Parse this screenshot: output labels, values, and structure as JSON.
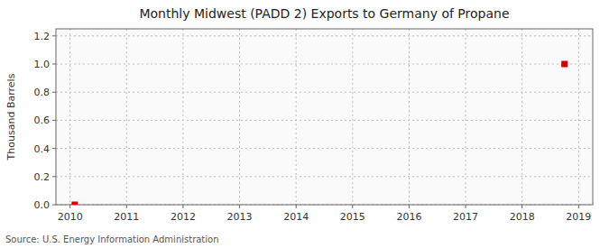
{
  "chart_data": {
    "type": "scatter",
    "title": "Monthly Midwest (PADD 2) Exports to Germany of Propane",
    "ylabel": "Thousand Barrels",
    "source": "Source: U.S. Energy Information Administration",
    "x": [
      2010.083,
      2018.75
    ],
    "values": [
      0.0,
      1.0
    ],
    "color": "#cc0000",
    "marker": "square",
    "xlim": [
      2009.75,
      2019.25
    ],
    "ylim": [
      0.0,
      1.25
    ],
    "xticks": [
      2010,
      2011,
      2012,
      2013,
      2014,
      2015,
      2016,
      2017,
      2018,
      2019
    ],
    "yticks": [
      {
        "value": 0.0,
        "label": "0.0"
      },
      0.2,
      0.4,
      0.6,
      0.8,
      {
        "value": 1.0,
        "label": "1.0"
      },
      1.2
    ],
    "grid": true
  }
}
